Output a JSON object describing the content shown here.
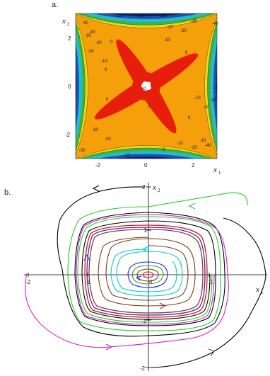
{
  "panel_a": {
    "label": "a.",
    "x_axis": {
      "name": "x",
      "sub": "1",
      "ticks": [
        "-2",
        "0",
        "2"
      ]
    },
    "y_axis": {
      "name": "x",
      "sub": "2",
      "ticks": [
        "2",
        "0",
        "-2"
      ]
    },
    "contour_labels": [
      "0",
      "-10",
      "-20",
      "-30",
      "-40",
      "-4"
    ],
    "colors": {
      "red": "#e81e0c",
      "orange": "#f5a00a",
      "yellow": "#f0dc14",
      "green": "#3cb43c",
      "cyan": "#1ebed2",
      "blue": "#1e50b4",
      "navy": "#0a1e64"
    }
  },
  "panel_b": {
    "label": "b.",
    "x_axis": {
      "name": "x",
      "sub": "1",
      "ticks": [
        "-2",
        "-1",
        "0",
        "1",
        "2"
      ]
    },
    "y_axis": {
      "name": "x",
      "sub": "2",
      "ticks": [
        "2",
        "1",
        "-1",
        "-2"
      ]
    },
    "curve_colors": [
      "#000000",
      "#22cc22",
      "#cc22cc",
      "#7a3b1a",
      "#00c8d2",
      "#e01010",
      "#1a1aff",
      "#993333",
      "#3333aa"
    ]
  }
}
